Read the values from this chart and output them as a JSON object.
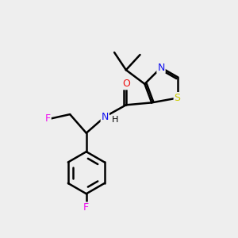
{
  "bg_color": "#eeeeee",
  "atom_colors": {
    "C": "#000000",
    "N": "#1010ee",
    "O": "#ee1010",
    "S": "#cccc00",
    "F": "#ee10ee",
    "H": "#000000"
  },
  "bond_color": "#000000",
  "bond_width": 1.8,
  "figsize": [
    3.0,
    3.0
  ],
  "dpi": 100
}
